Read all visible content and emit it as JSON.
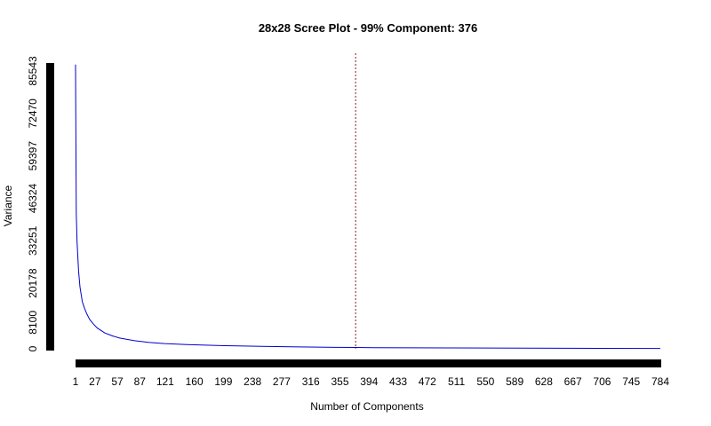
{
  "chart_data": {
    "type": "line",
    "title": "28x28 Scree Plot - 99% Component: 376",
    "xlabel": "Number of Components",
    "ylabel": "Variance",
    "x_ticks": [
      1,
      27,
      57,
      87,
      121,
      160,
      199,
      238,
      277,
      316,
      355,
      394,
      433,
      472,
      511,
      550,
      589,
      628,
      667,
      706,
      745,
      784
    ],
    "y_ticks": [
      0,
      8100,
      20178,
      33251,
      46324,
      59397,
      72470,
      85543
    ],
    "xlim": [
      1,
      784
    ],
    "ylim": [
      0,
      88000
    ],
    "grid": false,
    "legend": "none",
    "series": [
      {
        "x": [
          1,
          2,
          3,
          5,
          7,
          10,
          13,
          16,
          20,
          25,
          30,
          40,
          50,
          60,
          80,
          100,
          120,
          150,
          200,
          250,
          300,
          350,
          376,
          400,
          500,
          600,
          700,
          784
        ],
        "y": [
          87500,
          42000,
          33000,
          24000,
          19000,
          14500,
          12500,
          10800,
          9000,
          7600,
          6400,
          4900,
          4000,
          3300,
          2500,
          1950,
          1600,
          1300,
          950,
          750,
          580,
          450,
          400,
          360,
          260,
          190,
          140,
          100
        ]
      }
    ],
    "vline": {
      "x": 376
    },
    "colors": {
      "line": "#0000cc",
      "vline": "#8b1a1a",
      "axis": "#000000"
    }
  }
}
